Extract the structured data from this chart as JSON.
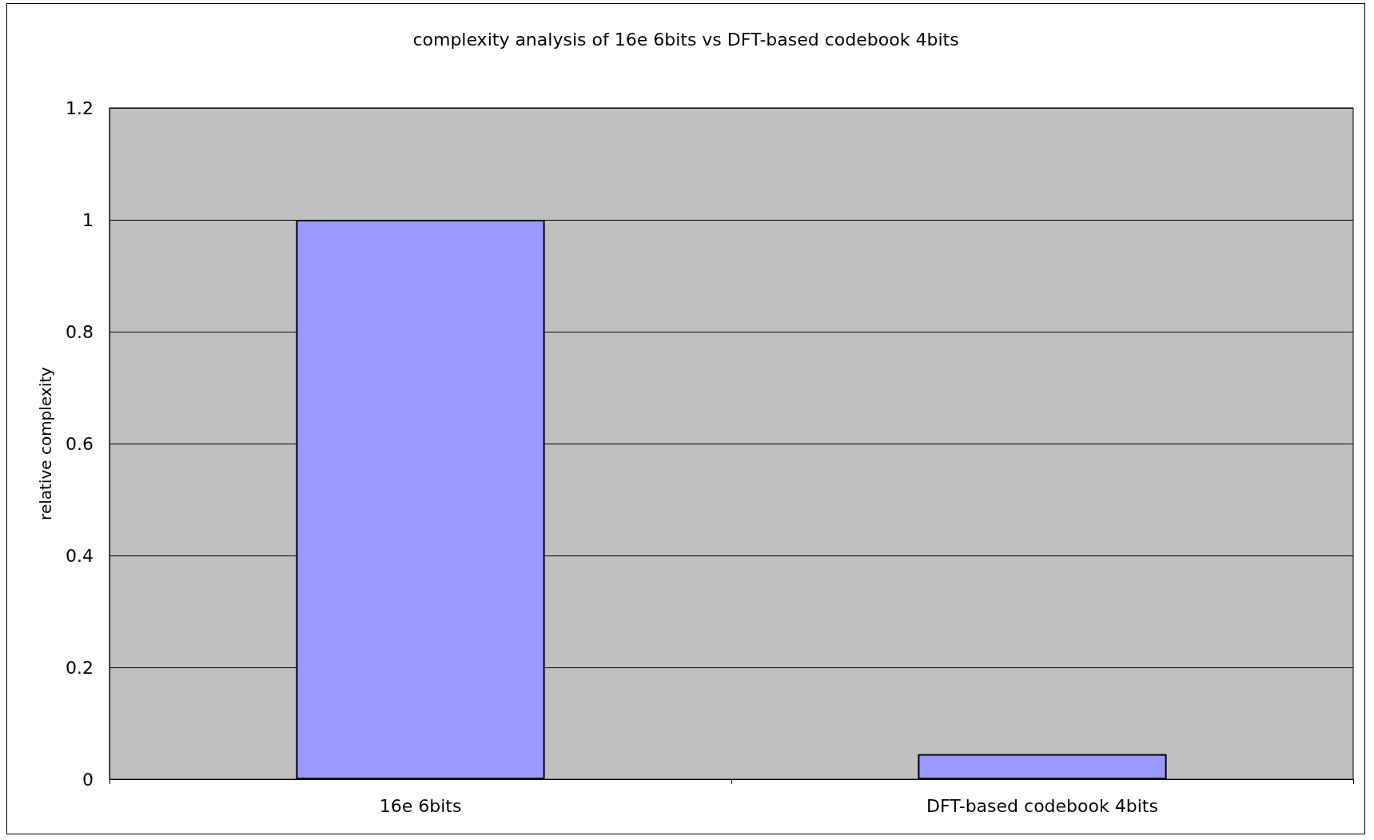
{
  "chart_data": {
    "type": "bar",
    "title": "complexity analysis of 16e 6bits vs DFT-based codebook 4bits",
    "ylabel": "relative complexity",
    "categories": [
      "16e 6bits",
      "DFT-based codebook 4bits"
    ],
    "series": [
      {
        "color": "#9999ff",
        "values": [
          1,
          0.045
        ]
      }
    ],
    "ylim": [
      0,
      1.2
    ],
    "yticks": [
      0,
      0.2,
      0.4,
      0.6,
      0.8,
      1,
      1.2
    ],
    "grid": "y"
  }
}
